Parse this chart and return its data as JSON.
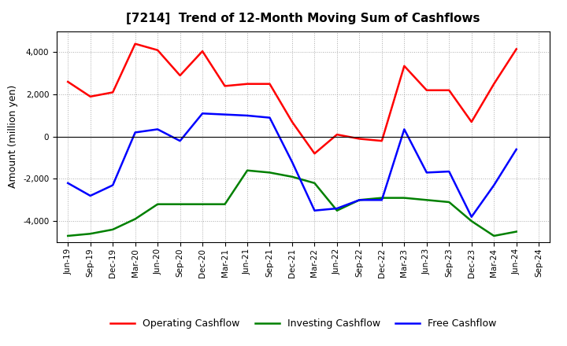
{
  "title": "[7214]  Trend of 12-Month Moving Sum of Cashflows",
  "ylabel": "Amount (million yen)",
  "x_labels": [
    "Jun-19",
    "Sep-19",
    "Dec-19",
    "Mar-20",
    "Jun-20",
    "Sep-20",
    "Dec-20",
    "Mar-21",
    "Jun-21",
    "Sep-21",
    "Dec-21",
    "Mar-22",
    "Jun-22",
    "Sep-22",
    "Dec-22",
    "Mar-23",
    "Jun-23",
    "Sep-23",
    "Dec-23",
    "Mar-24",
    "Jun-24",
    "Sep-24"
  ],
  "operating": [
    2600,
    1900,
    2100,
    4400,
    4100,
    2900,
    4050,
    2400,
    2500,
    2500,
    700,
    -800,
    100,
    -100,
    -200,
    3350,
    2200,
    2200,
    700,
    2500,
    4150,
    null
  ],
  "investing": [
    -4700,
    -4600,
    -4400,
    -3900,
    -3200,
    -3200,
    -3200,
    -3200,
    -1600,
    -1700,
    -1900,
    -2200,
    -3500,
    -3000,
    -2900,
    -2900,
    -3000,
    -3100,
    -4000,
    -4700,
    -4500,
    null
  ],
  "free": [
    -2200,
    -2800,
    -2300,
    200,
    350,
    -200,
    1100,
    1050,
    1000,
    900,
    -1200,
    -3500,
    -3400,
    -3000,
    -3000,
    350,
    -1700,
    -1650,
    -3800,
    -2300,
    -600,
    null
  ],
  "operating_color": "#ff0000",
  "investing_color": "#008000",
  "free_color": "#0000ff",
  "ylim": [
    -5000,
    5000
  ],
  "yticks": [
    -4000,
    -2000,
    0,
    2000,
    4000
  ],
  "bg_color": "#ffffff",
  "grid_color": "#aaaaaa",
  "linewidth": 1.8,
  "title_fontsize": 11,
  "tick_fontsize": 7.5,
  "ylabel_fontsize": 9,
  "legend_fontsize": 9
}
